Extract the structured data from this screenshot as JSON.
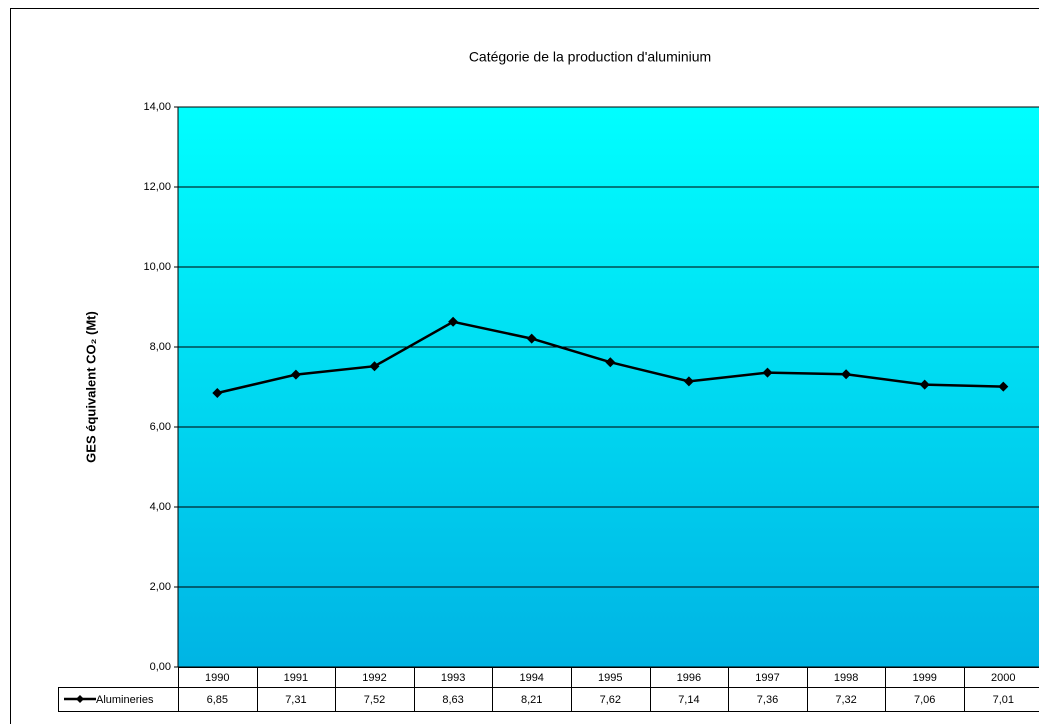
{
  "chart_data": {
    "type": "line",
    "title": "Catégorie de la production d'aluminium",
    "ylabel": "GES équivalent CO₂ (Mt)",
    "categories": [
      "1990",
      "1991",
      "1992",
      "1993",
      "1994",
      "1995",
      "1996",
      "1997",
      "1998",
      "1999",
      "2000"
    ],
    "series": [
      {
        "name": "Alumineries",
        "color": "#000000",
        "values": [
          6.85,
          7.31,
          7.52,
          8.63,
          8.21,
          7.62,
          7.14,
          7.36,
          7.32,
          7.06,
          7.01
        ],
        "value_labels": [
          "6,85",
          "7,31",
          "7,52",
          "8,63",
          "8,21",
          "7,62",
          "7,14",
          "7,36",
          "7,32",
          "7,06",
          "7,01"
        ]
      }
    ],
    "ylim": [
      0,
      14
    ],
    "yticks": [
      {
        "value": 0,
        "label": "0,00"
      },
      {
        "value": 2,
        "label": "2,00"
      },
      {
        "value": 4,
        "label": "4,00"
      },
      {
        "value": 6,
        "label": "6,00"
      },
      {
        "value": 8,
        "label": "8,00"
      },
      {
        "value": 10,
        "label": "10,00"
      },
      {
        "value": 12,
        "label": "12,00"
      },
      {
        "value": 14,
        "label": "14,00"
      }
    ],
    "grid": true
  }
}
